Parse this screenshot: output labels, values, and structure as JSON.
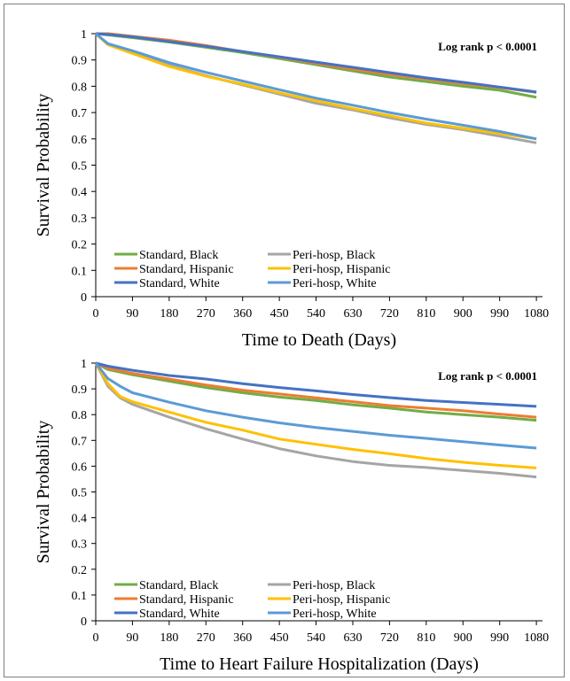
{
  "chart_data": [
    {
      "type": "line",
      "title": "",
      "annotation": "Log rank p < 0.0001",
      "xlabel": "Time to Death (Days)",
      "ylabel": "Survival Probability",
      "xlim": [
        0,
        1095
      ],
      "ylim": [
        0,
        1
      ],
      "xticks": [
        0,
        90,
        180,
        270,
        360,
        450,
        540,
        630,
        720,
        810,
        900,
        990,
        1080
      ],
      "yticks": [
        0,
        0.1,
        0.2,
        0.3,
        0.4,
        0.5,
        0.6,
        0.7,
        0.8,
        0.9,
        1
      ],
      "ytick_labels": [
        "0",
        "0.1",
        "0.2",
        "0.3",
        "0.4",
        "0.5",
        "0.6",
        "0.7",
        "0.8",
        "0.9",
        "1"
      ],
      "legend": "bottom-left",
      "grid": false,
      "series": [
        {
          "name": "Standard, Black",
          "color": "#70ad47",
          "x": [
            0,
            30,
            90,
            180,
            270,
            360,
            450,
            540,
            630,
            720,
            810,
            900,
            990,
            1080
          ],
          "y": [
            1,
            0.995,
            0.985,
            0.968,
            0.948,
            0.928,
            0.905,
            0.882,
            0.858,
            0.835,
            0.818,
            0.8,
            0.785,
            0.758
          ]
        },
        {
          "name": "Peri-hosp, Black",
          "color": "#a5a5a5",
          "x": [
            0,
            30,
            90,
            180,
            270,
            360,
            450,
            540,
            630,
            720,
            810,
            900,
            990,
            1080
          ],
          "y": [
            1,
            0.96,
            0.93,
            0.88,
            0.84,
            0.805,
            0.77,
            0.735,
            0.71,
            0.68,
            0.655,
            0.635,
            0.61,
            0.585
          ]
        },
        {
          "name": "Standard, Hispanic",
          "color": "#ed7d31",
          "x": [
            0,
            30,
            90,
            180,
            270,
            360,
            450,
            540,
            630,
            720,
            810,
            900,
            990,
            1080
          ],
          "y": [
            1,
            1.0,
            0.99,
            0.975,
            0.955,
            0.932,
            0.91,
            0.888,
            0.865,
            0.845,
            0.828,
            0.81,
            0.795,
            0.777
          ]
        },
        {
          "name": "Peri-hosp, Hispanic",
          "color": "#ffc000",
          "x": [
            0,
            30,
            90,
            180,
            270,
            360,
            450,
            540,
            630,
            720,
            810,
            900,
            990,
            1080
          ],
          "y": [
            1,
            0.958,
            0.925,
            0.875,
            0.838,
            0.808,
            0.775,
            0.745,
            0.715,
            0.688,
            0.66,
            0.64,
            0.62,
            0.6
          ]
        },
        {
          "name": "Standard, White",
          "color": "#4472c4",
          "x": [
            0,
            30,
            90,
            180,
            270,
            360,
            450,
            540,
            630,
            720,
            810,
            900,
            990,
            1080
          ],
          "y": [
            1,
            0.997,
            0.988,
            0.97,
            0.952,
            0.932,
            0.912,
            0.892,
            0.872,
            0.852,
            0.832,
            0.815,
            0.797,
            0.778
          ]
        },
        {
          "name": "Peri-hosp, White",
          "color": "#5b9bd5",
          "x": [
            0,
            30,
            90,
            180,
            270,
            360,
            450,
            540,
            630,
            720,
            810,
            900,
            990,
            1080
          ],
          "y": [
            1,
            0.962,
            0.935,
            0.89,
            0.853,
            0.82,
            0.787,
            0.755,
            0.728,
            0.7,
            0.675,
            0.652,
            0.628,
            0.6
          ]
        }
      ]
    },
    {
      "type": "line",
      "title": "",
      "annotation": "Log rank p < 0.0001",
      "xlabel": "Time to Heart Failure Hospitalization (Days)",
      "ylabel": "Survival Probability",
      "xlim": [
        0,
        1095
      ],
      "ylim": [
        0,
        1
      ],
      "xticks": [
        0,
        90,
        180,
        270,
        360,
        450,
        540,
        630,
        720,
        810,
        900,
        990,
        1080
      ],
      "yticks": [
        0,
        0.1,
        0.2,
        0.3,
        0.4,
        0.5,
        0.6,
        0.7,
        0.8,
        0.9,
        1
      ],
      "ytick_labels": [
        "0",
        "0.1",
        "0.2",
        "0.3",
        "0.4",
        "0.5",
        "0.6",
        "0.7",
        "0.8",
        "0.9",
        "1"
      ],
      "legend": "bottom-left",
      "grid": false,
      "series": [
        {
          "name": "Standard, Black",
          "color": "#70ad47",
          "x": [
            0,
            30,
            90,
            180,
            270,
            360,
            450,
            540,
            630,
            720,
            810,
            900,
            990,
            1080
          ],
          "y": [
            1,
            0.975,
            0.955,
            0.93,
            0.905,
            0.885,
            0.868,
            0.855,
            0.838,
            0.825,
            0.81,
            0.8,
            0.79,
            0.778
          ]
        },
        {
          "name": "Peri-hosp, Black",
          "color": "#a5a5a5",
          "x": [
            0,
            30,
            60,
            90,
            180,
            270,
            360,
            450,
            540,
            630,
            720,
            810,
            900,
            990,
            1080
          ],
          "y": [
            1,
            0.91,
            0.865,
            0.84,
            0.79,
            0.745,
            0.705,
            0.668,
            0.64,
            0.618,
            0.603,
            0.595,
            0.583,
            0.572,
            0.558
          ]
        },
        {
          "name": "Standard, Hispanic",
          "color": "#ed7d31",
          "x": [
            0,
            30,
            90,
            180,
            270,
            360,
            450,
            540,
            630,
            720,
            810,
            900,
            990,
            1080
          ],
          "y": [
            1,
            0.98,
            0.96,
            0.938,
            0.915,
            0.895,
            0.88,
            0.865,
            0.85,
            0.835,
            0.825,
            0.815,
            0.802,
            0.79
          ]
        },
        {
          "name": "Peri-hosp, Hispanic",
          "color": "#ffc000",
          "x": [
            0,
            30,
            60,
            90,
            180,
            270,
            360,
            450,
            540,
            630,
            720,
            810,
            900,
            990,
            1080
          ],
          "y": [
            1,
            0.92,
            0.87,
            0.85,
            0.81,
            0.77,
            0.74,
            0.705,
            0.685,
            0.665,
            0.648,
            0.63,
            0.615,
            0.603,
            0.593
          ]
        },
        {
          "name": "Standard, White",
          "color": "#4472c4",
          "x": [
            0,
            30,
            90,
            180,
            270,
            360,
            450,
            540,
            630,
            720,
            810,
            900,
            990,
            1080
          ],
          "y": [
            1,
            0.988,
            0.972,
            0.952,
            0.938,
            0.92,
            0.905,
            0.892,
            0.878,
            0.866,
            0.855,
            0.847,
            0.84,
            0.832
          ]
        },
        {
          "name": "Peri-hosp, White",
          "color": "#5b9bd5",
          "x": [
            0,
            30,
            60,
            90,
            180,
            270,
            360,
            450,
            540,
            630,
            720,
            810,
            900,
            990,
            1080
          ],
          "y": [
            1,
            0.94,
            0.91,
            0.885,
            0.848,
            0.815,
            0.79,
            0.768,
            0.75,
            0.735,
            0.72,
            0.708,
            0.695,
            0.682,
            0.67
          ]
        }
      ]
    }
  ]
}
